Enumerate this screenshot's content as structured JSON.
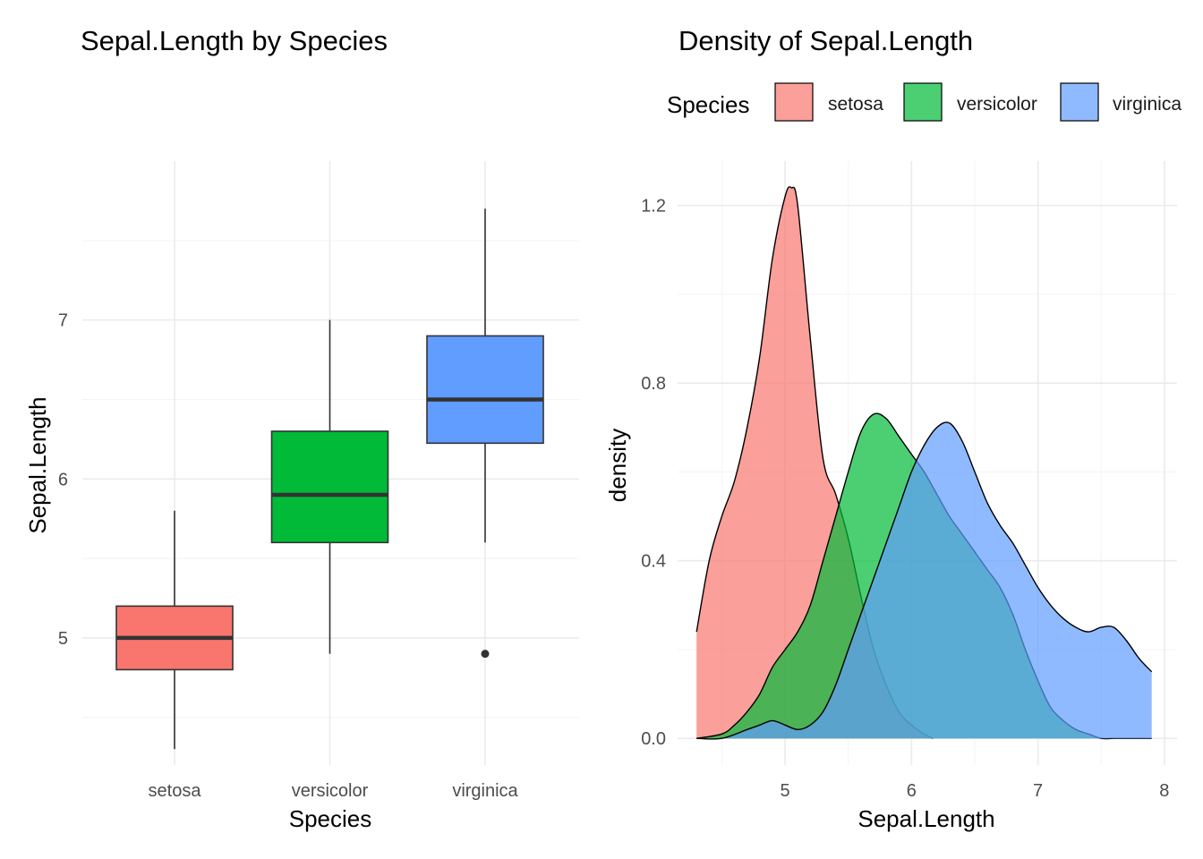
{
  "chart_data": [
    {
      "type": "box",
      "title": "Sepal.Length by Species",
      "xlabel": "Species",
      "ylabel": "Sepal.Length",
      "categories": [
        "setosa",
        "versicolor",
        "virginica"
      ],
      "ylim": [
        4.2,
        8.0
      ],
      "yticks": [
        5,
        6,
        7
      ],
      "ytick_labels": [
        "5",
        "6",
        "7"
      ],
      "grid": true,
      "boxes": [
        {
          "category": "setosa",
          "color": "#F8766D",
          "min": 4.3,
          "q1": 4.8,
          "median": 5.0,
          "q3": 5.2,
          "max": 5.8,
          "outliers": []
        },
        {
          "category": "versicolor",
          "color": "#00BA38",
          "min": 4.9,
          "q1": 5.6,
          "median": 5.9,
          "q3": 6.3,
          "max": 7.0,
          "outliers": []
        },
        {
          "category": "virginica",
          "color": "#619CFF",
          "min": 5.6,
          "q1": 6.225,
          "median": 6.5,
          "q3": 6.9,
          "max": 7.7,
          "outliers": [
            4.9
          ]
        }
      ]
    },
    {
      "type": "area",
      "title": "Density of Sepal.Length",
      "xlabel": "Sepal.Length",
      "ylabel": "density",
      "xlim": [
        4.15,
        8.1
      ],
      "ylim": [
        -0.06,
        1.3
      ],
      "xticks": [
        5,
        6,
        7,
        8
      ],
      "xtick_labels": [
        "5",
        "6",
        "7",
        "8"
      ],
      "yticks": [
        0.0,
        0.4,
        0.8,
        1.2
      ],
      "ytick_labels": [
        "0.0",
        "0.4",
        "0.8",
        "1.2"
      ],
      "grid": true,
      "legend": {
        "title": "Species",
        "position": "top",
        "entries": [
          "setosa",
          "versicolor",
          "virginica"
        ]
      },
      "fill_alpha": 0.7,
      "series": [
        {
          "name": "setosa",
          "color": "#F8766D",
          "x": [
            4.3,
            4.4,
            4.5,
            4.6,
            4.7,
            4.8,
            4.9,
            5.0,
            5.05,
            5.1,
            5.2,
            5.3,
            5.4,
            5.5,
            5.6,
            5.7,
            5.8,
            5.9,
            6.0,
            6.1,
            6.17
          ],
          "y": [
            0.24,
            0.4,
            0.5,
            0.58,
            0.7,
            0.86,
            1.08,
            1.22,
            1.24,
            1.2,
            0.9,
            0.63,
            0.55,
            0.45,
            0.32,
            0.2,
            0.12,
            0.06,
            0.03,
            0.01,
            0.0
          ]
        },
        {
          "name": "versicolor",
          "color": "#00BA38",
          "x": [
            4.3,
            4.5,
            4.6,
            4.7,
            4.8,
            4.9,
            5.0,
            5.1,
            5.2,
            5.3,
            5.4,
            5.5,
            5.6,
            5.7,
            5.8,
            5.9,
            6.0,
            6.1,
            6.2,
            6.3,
            6.4,
            6.5,
            6.6,
            6.7,
            6.8,
            6.9,
            7.0,
            7.1,
            7.2,
            7.3,
            7.4,
            7.5,
            7.6,
            7.7,
            7.8,
            7.9
          ],
          "y": [
            0.0,
            0.01,
            0.03,
            0.06,
            0.1,
            0.16,
            0.2,
            0.24,
            0.3,
            0.4,
            0.5,
            0.6,
            0.69,
            0.73,
            0.72,
            0.68,
            0.64,
            0.6,
            0.55,
            0.5,
            0.46,
            0.42,
            0.38,
            0.34,
            0.28,
            0.2,
            0.13,
            0.07,
            0.04,
            0.02,
            0.01,
            0.0,
            0.0,
            0.0,
            0.0,
            0.0
          ]
        },
        {
          "name": "virginica",
          "color": "#619CFF",
          "x": [
            4.3,
            4.5,
            4.7,
            4.8,
            4.9,
            5.0,
            5.1,
            5.2,
            5.3,
            5.4,
            5.5,
            5.6,
            5.7,
            5.8,
            5.9,
            6.0,
            6.1,
            6.2,
            6.3,
            6.4,
            6.5,
            6.6,
            6.7,
            6.8,
            6.9,
            7.0,
            7.1,
            7.2,
            7.3,
            7.4,
            7.5,
            7.6,
            7.7,
            7.8,
            7.9
          ],
          "y": [
            0.0,
            0.0,
            0.02,
            0.03,
            0.04,
            0.03,
            0.02,
            0.03,
            0.06,
            0.12,
            0.2,
            0.28,
            0.36,
            0.44,
            0.52,
            0.6,
            0.66,
            0.7,
            0.71,
            0.67,
            0.6,
            0.53,
            0.48,
            0.44,
            0.39,
            0.34,
            0.3,
            0.27,
            0.25,
            0.24,
            0.25,
            0.25,
            0.22,
            0.18,
            0.15
          ]
        }
      ]
    }
  ]
}
